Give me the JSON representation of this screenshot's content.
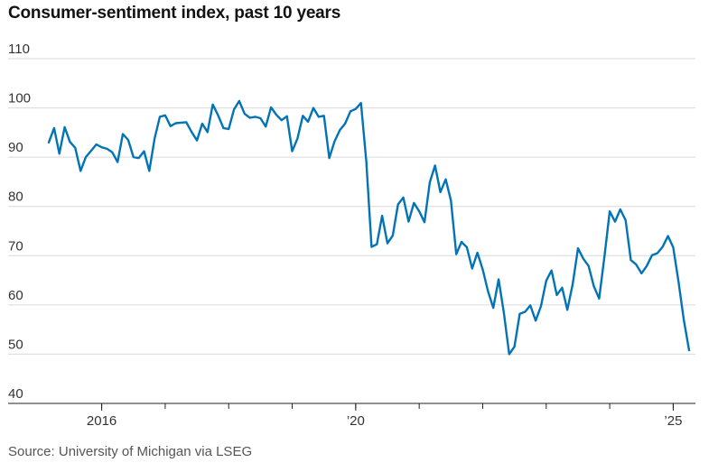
{
  "title": "Consumer-sentiment index, past 10 years",
  "source": "Source: University of Michigan via LSEG",
  "chart_data": {
    "type": "line",
    "title": "Consumer-sentiment index, past 10 years",
    "xlabel": "",
    "ylabel": "",
    "ylim": [
      40,
      110
    ],
    "xlim": [
      "2015-01",
      "2025-04"
    ],
    "yticks": [
      "40",
      "50",
      "60",
      "70",
      "80",
      "90",
      "100",
      "110"
    ],
    "xtick_labels": [
      {
        "date": "2016-01",
        "label": "2016"
      },
      {
        "date": "2020-01",
        "label": "’20"
      },
      {
        "date": "2025-01",
        "label": "’25"
      }
    ],
    "grid": true,
    "color": "#0274b6",
    "series": [
      {
        "x": [
          "2015-03",
          "2015-04",
          "2015-05",
          "2015-06",
          "2015-07",
          "2015-08",
          "2015-09",
          "2015-10",
          "2015-11",
          "2015-12",
          "2016-01",
          "2016-02",
          "2016-03",
          "2016-04",
          "2016-05",
          "2016-06",
          "2016-07",
          "2016-08",
          "2016-09",
          "2016-10",
          "2016-11",
          "2016-12",
          "2017-01",
          "2017-02",
          "2017-03",
          "2017-04",
          "2017-05",
          "2017-06",
          "2017-07",
          "2017-08",
          "2017-09",
          "2017-10",
          "2017-11",
          "2017-12",
          "2018-01",
          "2018-02",
          "2018-03",
          "2018-04",
          "2018-05",
          "2018-06",
          "2018-07",
          "2018-08",
          "2018-09",
          "2018-10",
          "2018-11",
          "2018-12",
          "2019-01",
          "2019-02",
          "2019-03",
          "2019-04",
          "2019-05",
          "2019-06",
          "2019-07",
          "2019-08",
          "2019-09",
          "2019-10",
          "2019-11",
          "2019-12",
          "2020-01",
          "2020-02",
          "2020-03",
          "2020-04",
          "2020-05",
          "2020-06",
          "2020-07",
          "2020-08",
          "2020-09",
          "2020-10",
          "2020-11",
          "2020-12",
          "2021-01",
          "2021-02",
          "2021-03",
          "2021-04",
          "2021-05",
          "2021-06",
          "2021-07",
          "2021-08",
          "2021-09",
          "2021-10",
          "2021-11",
          "2021-12",
          "2022-01",
          "2022-02",
          "2022-03",
          "2022-04",
          "2022-05",
          "2022-06",
          "2022-07",
          "2022-08",
          "2022-09",
          "2022-10",
          "2022-11",
          "2022-12",
          "2023-01",
          "2023-02",
          "2023-03",
          "2023-04",
          "2023-05",
          "2023-06",
          "2023-07",
          "2023-08",
          "2023-09",
          "2023-10",
          "2023-11",
          "2023-12",
          "2024-01",
          "2024-02",
          "2024-03",
          "2024-04",
          "2024-05",
          "2024-06",
          "2024-07",
          "2024-08",
          "2024-09",
          "2024-10",
          "2024-11",
          "2024-12",
          "2025-01",
          "2025-02",
          "2025-03",
          "2025-04"
        ],
        "y": [
          93.0,
          95.9,
          90.7,
          96.1,
          93.1,
          91.9,
          87.2,
          90.0,
          91.3,
          92.6,
          92.0,
          91.7,
          91.0,
          89.0,
          94.7,
          93.5,
          90.0,
          89.8,
          91.2,
          87.2,
          93.8,
          98.2,
          98.5,
          96.3,
          96.9,
          97.0,
          97.1,
          95.1,
          93.4,
          96.8,
          95.1,
          100.7,
          98.5,
          95.9,
          95.7,
          99.7,
          101.4,
          98.8,
          98.0,
          98.2,
          97.9,
          96.2,
          100.1,
          98.6,
          97.5,
          98.3,
          91.2,
          93.8,
          98.4,
          97.2,
          100.0,
          98.2,
          98.4,
          89.8,
          93.2,
          95.5,
          96.8,
          99.3,
          99.8,
          101.0,
          89.1,
          71.8,
          72.3,
          78.1,
          72.5,
          74.1,
          80.4,
          81.8,
          76.9,
          80.7,
          79.0,
          76.8,
          84.9,
          88.3,
          82.9,
          85.5,
          81.2,
          70.3,
          72.8,
          71.7,
          67.4,
          70.6,
          67.2,
          62.8,
          59.4,
          65.2,
          58.4,
          50.0,
          51.5,
          58.2,
          58.6,
          59.9,
          56.8,
          59.7,
          64.9,
          67.0,
          62.0,
          63.5,
          59.0,
          64.2,
          71.5,
          69.4,
          67.9,
          63.8,
          61.3,
          69.7,
          79.0,
          76.9,
          79.4,
          77.2,
          69.1,
          68.2,
          66.4,
          67.9,
          70.1,
          70.5,
          71.8,
          74.0,
          71.7,
          64.7,
          57.0,
          50.8
        ]
      }
    ]
  }
}
